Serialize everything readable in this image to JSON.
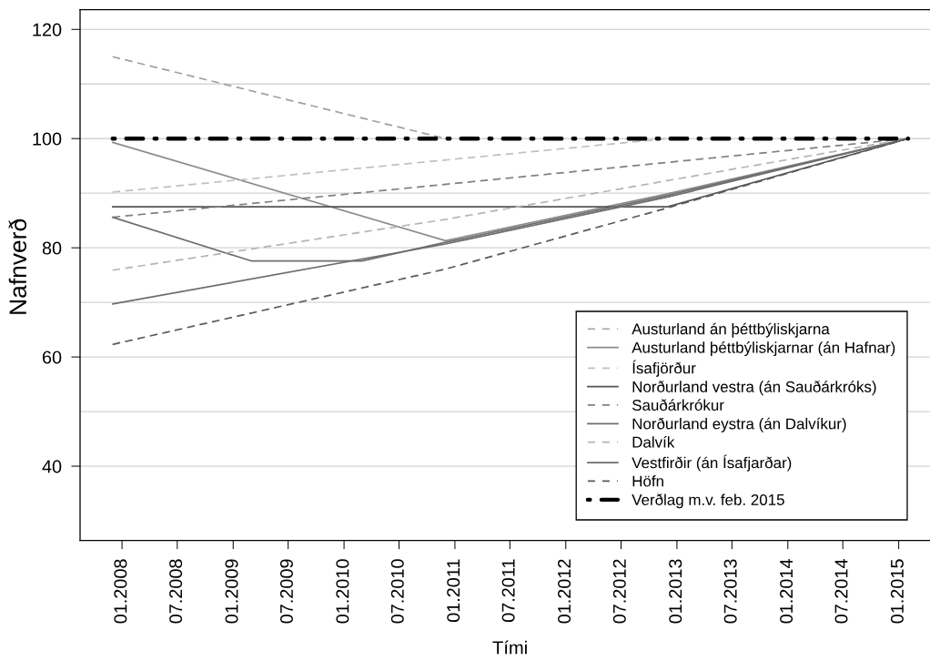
{
  "chart_data": {
    "type": "line",
    "xlabel": "Tími",
    "ylabel": "Nafnverð",
    "xlim": [
      "2007-08-16",
      "2015-04-14"
    ],
    "xticks": [
      {
        "value": "2008-01",
        "label": "01.2008"
      },
      {
        "value": "2008-07",
        "label": "07.2008"
      },
      {
        "value": "2009-01",
        "label": "01.2009"
      },
      {
        "value": "2009-07",
        "label": "07.2009"
      },
      {
        "value": "2010-01",
        "label": "01.2010"
      },
      {
        "value": "2010-07",
        "label": "07.2010"
      },
      {
        "value": "2011-01",
        "label": "01.2011"
      },
      {
        "value": "2011-07",
        "label": "07.2011"
      },
      {
        "value": "2012-01",
        "label": "01.2012"
      },
      {
        "value": "2012-07",
        "label": "07.2012"
      },
      {
        "value": "2013-01",
        "label": "01.2013"
      },
      {
        "value": "2013-07",
        "label": "07.2013"
      },
      {
        "value": "2014-01",
        "label": "01.2014"
      },
      {
        "value": "2014-07",
        "label": "07.2014"
      },
      {
        "value": "2015-01",
        "label": "01.2015"
      }
    ],
    "ylim": [
      26.4,
      123.6
    ],
    "yticks": [
      40,
      {
        "value": 50,
        "label": null
      },
      60,
      {
        "value": 70,
        "label": null
      },
      80,
      {
        "value": 90,
        "label": null
      },
      100,
      {
        "value": 110,
        "label": null
      },
      120
    ],
    "grid": "y",
    "legend": "bottom right",
    "series": [
      {
        "name": "Austurland án þéttbýliskjarna",
        "color": "#a0a0a0",
        "line_style": "dashed",
        "x": [
          "2007-12",
          "2010-12"
        ],
        "values": [
          115.0,
          100
        ]
      },
      {
        "name": "Austurland þéttbýliskjarnar (án Hafnar)",
        "color": "#8c8c8c",
        "line_style": "solid",
        "x": [
          "2007-12",
          "2010-12",
          "2012-12",
          "2015-02"
        ],
        "values": [
          99.3,
          81.3,
          89.9,
          100
        ]
      },
      {
        "name": "Ísafjörður",
        "color": "#c0c0c0",
        "line_style": "dashed",
        "x": [
          "2007-12",
          "2012-12"
        ],
        "values": [
          90.2,
          100
        ]
      },
      {
        "name": "Norðurland vestra (án Sauðárkróks)",
        "color": "#555555",
        "line_style": "solid",
        "x": [
          "2007-12",
          "2012-12",
          "2015-02"
        ],
        "values": [
          87.5,
          87.5,
          100
        ]
      },
      {
        "name": "Sauðárkrókur",
        "color": "#808080",
        "line_style": "dashed",
        "x": [
          "2007-12",
          "2015-02"
        ],
        "values": [
          85.6,
          100
        ]
      },
      {
        "name": "Norðurland eystra (án Dalvíkur)",
        "color": "#6e6e6e",
        "line_style": "solid",
        "x": [
          "2007-12",
          "2009-03",
          "2010-03",
          "2010-12",
          "2012-12",
          "2015-02"
        ],
        "values": [
          85.6,
          77.6,
          77.6,
          81.0,
          89.6,
          100
        ]
      },
      {
        "name": "Dalvík",
        "color": "#b4b4b4",
        "line_style": "dashed",
        "x": [
          "2007-12",
          "2010-12",
          "2015-02"
        ],
        "values": [
          75.9,
          85.2,
          100
        ]
      },
      {
        "name": "Vestfirðir (án Ísafjarðar)",
        "color": "#6e6e6e",
        "line_style": "solid",
        "x": [
          "2007-12",
          "2010-12",
          "2012-12",
          "2015-02"
        ],
        "values": [
          69.7,
          80.7,
          89.3,
          100
        ]
      },
      {
        "name": "Höfn",
        "color": "#5a5a5a",
        "line_style": "dashed",
        "x": [
          "2007-12",
          "2010-12",
          "2012-12",
          "2015-02"
        ],
        "values": [
          62.3,
          76.1,
          87.3,
          100
        ]
      },
      {
        "name": "Verðlag m.v. feb. 2015",
        "color": "#000000",
        "line_style": "dashdot",
        "x": [
          "2007-12",
          "2015-02"
        ],
        "values": [
          100,
          100
        ]
      }
    ]
  }
}
